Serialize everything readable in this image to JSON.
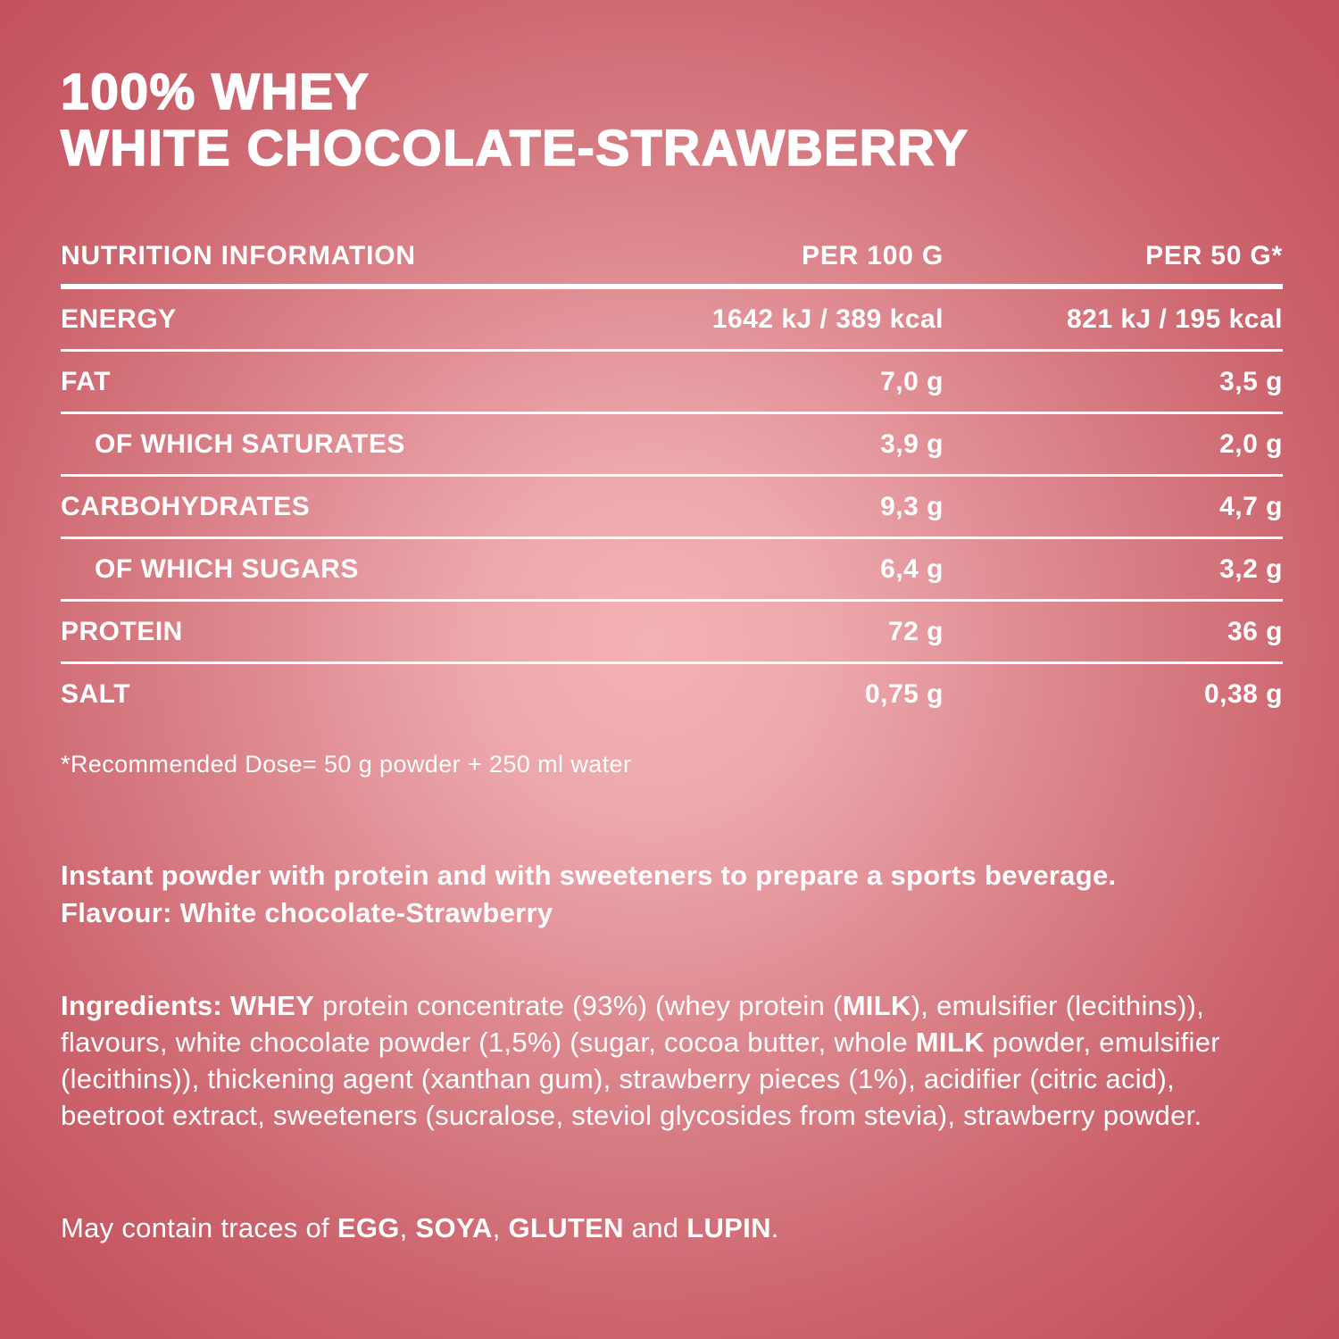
{
  "colors": {
    "background_center": "#f3b2b6",
    "background_edge": "#c04f5a",
    "text": "#ffffff"
  },
  "title": {
    "line1": "100% WHEY",
    "line2": "WHITE CHOCOLATE-STRAWBERRY"
  },
  "nutrition_table": {
    "headers": [
      "NUTRITION INFORMATION",
      "PER 100 G",
      "PER 50 G*"
    ],
    "rows": [
      {
        "label": "ENERGY",
        "per_100g": "1642 kJ / 389 kcal",
        "per_50g": "821 kJ / 195 kcal",
        "indent": false
      },
      {
        "label": "FAT",
        "per_100g": "7,0 g",
        "per_50g": "3,5 g",
        "indent": false
      },
      {
        "label": "OF WHICH SATURATES",
        "per_100g": "3,9 g",
        "per_50g": "2,0 g",
        "indent": true
      },
      {
        "label": "CARBOHYDRATES",
        "per_100g": "9,3 g",
        "per_50g": "4,7 g",
        "indent": false
      },
      {
        "label": "OF WHICH SUGARS",
        "per_100g": "6,4 g",
        "per_50g": "3,2 g",
        "indent": true
      },
      {
        "label": "PROTEIN",
        "per_100g": "72 g",
        "per_50g": "36 g",
        "indent": false
      },
      {
        "label": "SALT",
        "per_100g": "0,75 g",
        "per_50g": "0,38 g",
        "indent": false
      }
    ],
    "footnote": "*Recommended Dose= 50 g powder + 250 ml water"
  },
  "description": {
    "line1": "Instant powder with protein and with sweeteners to prepare a sports beverage.",
    "line2": "Flavour: White chocolate-Strawberry"
  },
  "ingredients": {
    "segments": [
      {
        "text": "Ingredients: WHEY",
        "bold": true
      },
      {
        "text": " protein concentrate (93%) (whey protein (",
        "bold": false
      },
      {
        "text": "MILK",
        "bold": true
      },
      {
        "text": "), emulsifier (lecithins)), flavours, white chocolate powder (1,5%) (sugar, cocoa butter, whole ",
        "bold": false
      },
      {
        "text": "MILK",
        "bold": true
      },
      {
        "text": " powder, emulsifier (lecithins)), thickening agent (xanthan gum), strawberry pieces (1%), acidifier (citric acid), beetroot extract, sweeteners (sucralose, steviol glycosides from stevia), strawberry powder.",
        "bold": false
      }
    ]
  },
  "allergens": {
    "segments": [
      {
        "text": "May contain traces of ",
        "bold": false
      },
      {
        "text": "EGG",
        "bold": true
      },
      {
        "text": ", ",
        "bold": false
      },
      {
        "text": "SOYA",
        "bold": true
      },
      {
        "text": ", ",
        "bold": false
      },
      {
        "text": "GLUTEN",
        "bold": true
      },
      {
        "text": " and ",
        "bold": false
      },
      {
        "text": "LUPIN",
        "bold": true
      },
      {
        "text": ".",
        "bold": false
      }
    ]
  }
}
